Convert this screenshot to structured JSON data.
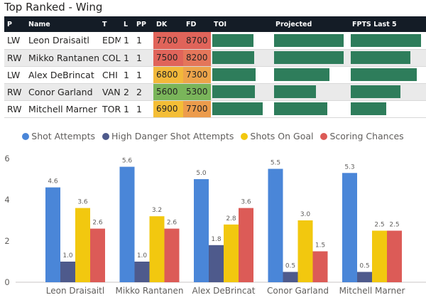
{
  "title": "Top Ranked - Wing",
  "table": {
    "columns": [
      "P",
      "Name",
      "T",
      "L",
      "PP",
      "DK",
      "FD",
      "TOI",
      "Projected",
      "FPTS Last 5"
    ],
    "rows": [
      {
        "p": "LW",
        "name": "Leon Draisaitl",
        "team": "EDM",
        "line": "1",
        "pp": "1",
        "dk": "7700",
        "fd": "8700",
        "dk_color": "#e0645a",
        "fd_color": "#e0645a",
        "toi": 0.71,
        "projected": 0.95,
        "fpts_last5": 0.96
      },
      {
        "p": "RW",
        "name": "Mikko Rantanen",
        "team": "COL",
        "line": "1",
        "pp": "1",
        "dk": "7500",
        "fd": "8200",
        "dk_color": "#e0645a",
        "fd_color": "#e4765a",
        "toi": 0.72,
        "projected": 0.95,
        "fpts_last5": 0.82
      },
      {
        "p": "LW",
        "name": "Alex DeBrincat",
        "team": "CHI",
        "line": "1",
        "pp": "1",
        "dk": "6800",
        "fd": "7300",
        "dk_color": "#f2b83a",
        "fd_color": "#eda44a",
        "toi": 0.74,
        "projected": 0.76,
        "fpts_last5": 0.9
      },
      {
        "p": "RW",
        "name": "Conor Garland",
        "team": "VAN",
        "line": "2",
        "pp": "2",
        "dk": "5600",
        "fd": "5300",
        "dk_color": "#7ab55a",
        "fd_color": "#7ab55a",
        "toi": 0.73,
        "projected": 0.57,
        "fpts_last5": 0.68
      },
      {
        "p": "RW",
        "name": "Mitchell Marner",
        "team": "TOR",
        "line": "1",
        "pp": "1",
        "dk": "6900",
        "fd": "7700",
        "dk_color": "#f4be36",
        "fd_color": "#ec9c4c",
        "toi": 0.86,
        "projected": 0.73,
        "fpts_last5": 0.49
      }
    ]
  },
  "chart_data": {
    "type": "bar",
    "categories": [
      "Leon Draisaitl",
      "Mikko Rantanen",
      "Alex DeBrincat",
      "Conor Garland",
      "Mitchell Marner"
    ],
    "series": [
      {
        "name": "Shot Attempts",
        "color": "#4a86d8",
        "values": [
          4.6,
          5.6,
          5.0,
          5.5,
          5.3
        ],
        "labels": [
          "4.6",
          "5.6",
          "5.0",
          "5.5",
          "5.3"
        ]
      },
      {
        "name": "High Danger Shot Attempts",
        "color": "#4e5a8c",
        "values": [
          1.0,
          1.0,
          1.8,
          0.5,
          0.5
        ],
        "labels": [
          "1.0",
          "1.0",
          "1.8",
          "0.5",
          "0.5"
        ]
      },
      {
        "name": "Shots On Goal",
        "color": "#f2c80f",
        "values": [
          3.6,
          3.2,
          2.8,
          3.0,
          2.5
        ],
        "labels": [
          "3.6",
          "3.2",
          "2.8",
          "3.0",
          "2.5"
        ]
      },
      {
        "name": "Scoring Chances",
        "color": "#dc5b57",
        "values": [
          2.6,
          2.6,
          3.6,
          1.5,
          2.5
        ],
        "labels": [
          "2.6",
          "2.6",
          "3.6",
          "1.5",
          "2.5"
        ]
      }
    ],
    "ylim": [
      0,
      6
    ],
    "yticks": [
      "0",
      "2",
      "4",
      "6"
    ],
    "legend_position": "top-center",
    "grid": false
  }
}
